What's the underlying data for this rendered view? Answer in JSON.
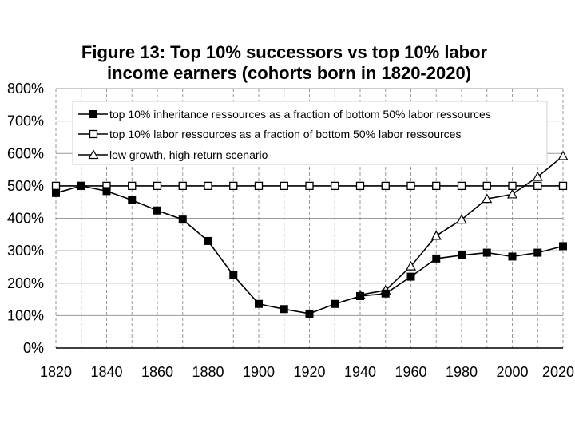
{
  "chart_data": {
    "type": "line",
    "title_lines": [
      "Figure 13: Top 10% successors vs top 10% labor",
      "income earners (cohorts born in 1820-2020)"
    ],
    "x": [
      1820,
      1830,
      1840,
      1850,
      1860,
      1870,
      1880,
      1890,
      1900,
      1910,
      1920,
      1930,
      1940,
      1950,
      1960,
      1970,
      1980,
      1990,
      2000,
      2010,
      2020
    ],
    "x_ticks": [
      1820,
      1840,
      1860,
      1880,
      1900,
      1920,
      1940,
      1960,
      1980,
      2000,
      2020
    ],
    "x_tick_labels": [
      "1820",
      "1840",
      "1860",
      "1880",
      "1900",
      "1920",
      "1940",
      "1960",
      "1980",
      "2000",
      "2020"
    ],
    "xlim": [
      1820,
      2020
    ],
    "y_ticks": [
      0,
      100,
      200,
      300,
      400,
      500,
      600,
      700,
      800
    ],
    "y_tick_labels": [
      "0%",
      "100%",
      "200%",
      "300%",
      "400%",
      "500%",
      "600%",
      "700%",
      "800%"
    ],
    "ylim": [
      0,
      800
    ],
    "grid": {
      "horizontal": "solid",
      "vertical": "dashed"
    },
    "legend_position": "top",
    "series": [
      {
        "name": "top 10% inheritance ressources as a fraction of bottom 50% labor ressources",
        "marker": "filled-square",
        "values": [
          478,
          500,
          484,
          456,
          424,
          396,
          330,
          224,
          136,
          120,
          106,
          136,
          160,
          168,
          220,
          276,
          286,
          294,
          282,
          294,
          314
        ]
      },
      {
        "name": "top 10% labor ressources as a fraction of bottom 50% labor ressources",
        "marker": "open-square",
        "values": [
          500,
          500,
          500,
          500,
          500,
          500,
          500,
          500,
          500,
          500,
          500,
          500,
          500,
          500,
          500,
          500,
          500,
          500,
          500,
          500,
          500
        ]
      },
      {
        "name": "low growth, high return scenario",
        "marker": "open-triangle",
        "x": [
          1940,
          1950,
          1960,
          1970,
          1980,
          1990,
          2000,
          2010,
          2020
        ],
        "values": [
          164,
          178,
          252,
          346,
          396,
          460,
          474,
          528,
          592
        ]
      }
    ]
  }
}
